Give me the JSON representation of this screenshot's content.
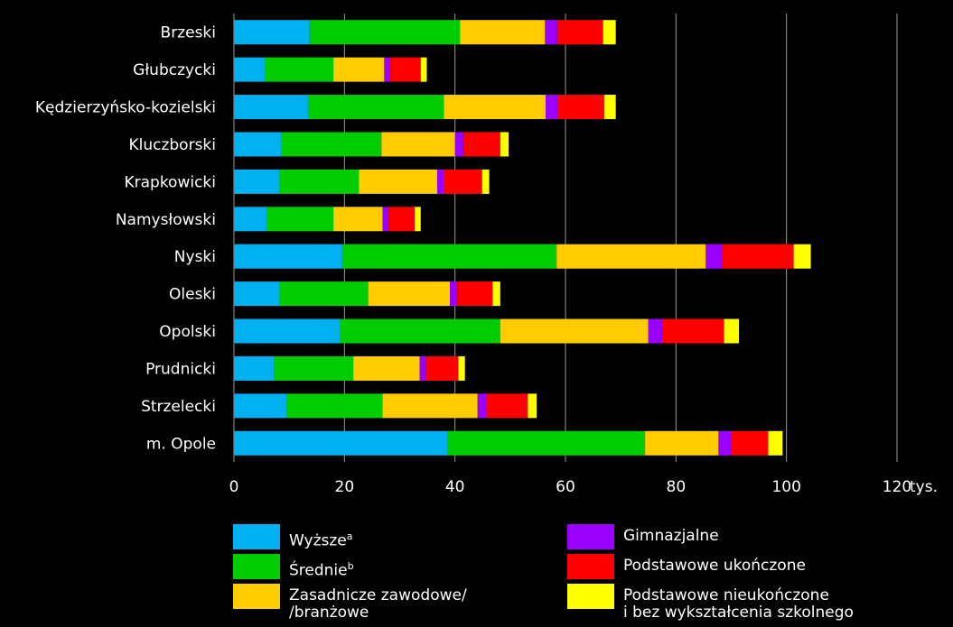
{
  "chart_data": {
    "type": "bar",
    "orientation": "horizontal",
    "stacked": true,
    "categories": [
      "Brzeski",
      "Głubczycki",
      "Kędzierzyńsko-kozielski",
      "Kluczborski",
      "Krapkowicki",
      "Namysłowski",
      "Nyski",
      "Oleski",
      "Opolski",
      "Prudnicki",
      "Strzelecki",
      "m. Opole"
    ],
    "series": [
      {
        "name": "Wyższe",
        "sup": "a",
        "color": "#00b0f0",
        "values": [
          13.7,
          5.7,
          13.4,
          8.6,
          8.2,
          6.0,
          19.6,
          8.2,
          19.2,
          7.3,
          9.6,
          38.7
        ]
      },
      {
        "name": "Średnie",
        "sup": "b",
        "color": "#00cc00",
        "values": [
          27.2,
          12.3,
          24.6,
          18.1,
          14.4,
          12.0,
          38.8,
          16.1,
          29.0,
          14.3,
          17.3,
          35.7
        ]
      },
      {
        "name": "Zasadnicze zawodowe/\n/branżowe",
        "sup": "",
        "color": "#ffcc00",
        "values": [
          15.4,
          9.2,
          18.4,
          13.3,
          14.2,
          8.9,
          27.0,
          14.8,
          26.8,
          12.0,
          17.2,
          13.3
        ]
      },
      {
        "name": "Gimnazjalne",
        "sup": "",
        "color": "#9900ff",
        "values": [
          2.2,
          1.1,
          2.2,
          1.5,
          1.3,
          1.1,
          3.0,
          1.3,
          2.6,
          1.2,
          1.6,
          2.3
        ]
      },
      {
        "name": "Podstawowe ukończone",
        "sup": "",
        "color": "#ff0000",
        "values": [
          8.3,
          5.5,
          8.4,
          6.7,
          6.8,
          4.7,
          12.9,
          6.4,
          11.1,
          5.8,
          7.5,
          6.7
        ]
      },
      {
        "name": "Podstawowe nieukończone\ni bez wykształcenia szkolnego",
        "sup": "",
        "color": "#ffff00",
        "values": [
          2.3,
          1.1,
          2.1,
          1.5,
          1.3,
          1.1,
          3.1,
          1.4,
          2.7,
          1.2,
          1.6,
          2.6
        ]
      }
    ],
    "x_ticks": [
      0,
      20,
      40,
      60,
      80,
      100,
      120
    ],
    "x_unit": "tys.",
    "xlim": [
      0,
      120
    ],
    "grid": true,
    "legend": "bottom"
  }
}
